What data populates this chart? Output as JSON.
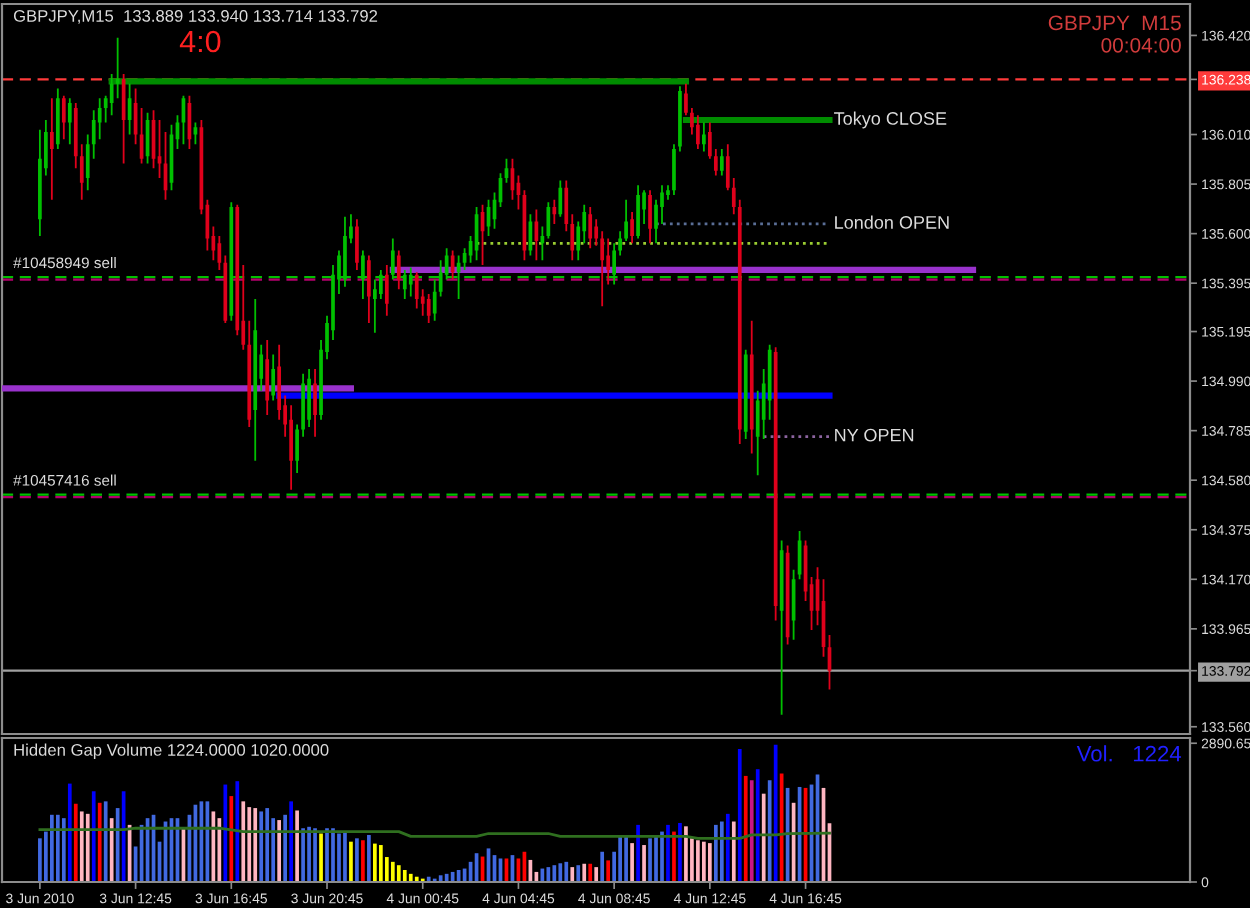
{
  "chart_data": [
    {
      "type": "candlestick",
      "title": "GBPJPY,M15  133.889 133.940 133.714 133.792",
      "x": [
        "2010-06-03T08:45",
        "2010-06-03T09:00",
        "2010-06-03T09:15",
        "2010-06-03T09:30",
        "2010-06-03T09:45",
        "2010-06-03T10:00",
        "2010-06-03T10:15",
        "2010-06-03T10:30",
        "2010-06-03T10:45",
        "2010-06-03T11:00",
        "2010-06-03T11:15",
        "2010-06-03T11:30",
        "2010-06-03T11:45",
        "2010-06-03T12:00",
        "2010-06-03T12:15",
        "2010-06-03T12:30",
        "2010-06-03T12:45",
        "2010-06-03T13:00",
        "2010-06-03T13:15",
        "2010-06-03T13:30",
        "2010-06-03T13:45",
        "2010-06-03T14:00",
        "2010-06-03T14:15",
        "2010-06-03T14:30",
        "2010-06-03T14:45",
        "2010-06-03T15:00",
        "2010-06-03T15:15",
        "2010-06-03T15:30",
        "2010-06-03T15:45",
        "2010-06-03T16:00",
        "2010-06-03T16:15",
        "2010-06-03T16:30",
        "2010-06-03T16:45",
        "2010-06-03T17:00",
        "2010-06-03T17:15",
        "2010-06-03T17:30",
        "2010-06-03T17:45",
        "2010-06-03T18:00",
        "2010-06-03T18:15",
        "2010-06-03T18:30",
        "2010-06-03T18:45",
        "2010-06-03T19:00",
        "2010-06-03T19:15",
        "2010-06-03T19:30",
        "2010-06-03T19:45",
        "2010-06-03T20:00",
        "2010-06-03T20:15",
        "2010-06-03T20:30",
        "2010-06-03T20:45",
        "2010-06-03T21:00",
        "2010-06-03T21:15",
        "2010-06-03T21:30",
        "2010-06-03T21:45",
        "2010-06-03T22:00",
        "2010-06-03T22:15",
        "2010-06-03T22:30",
        "2010-06-03T22:45",
        "2010-06-03T23:00",
        "2010-06-03T23:15",
        "2010-06-03T23:30",
        "2010-06-03T23:45",
        "2010-06-04T00:00",
        "2010-06-04T00:15",
        "2010-06-04T00:30",
        "2010-06-04T00:45",
        "2010-06-04T01:00",
        "2010-06-04T01:15",
        "2010-06-04T01:30",
        "2010-06-04T01:45",
        "2010-06-04T02:00",
        "2010-06-04T02:15",
        "2010-06-04T02:30",
        "2010-06-04T02:45",
        "2010-06-04T03:00",
        "2010-06-04T03:15",
        "2010-06-04T03:30",
        "2010-06-04T03:45",
        "2010-06-04T04:00",
        "2010-06-04T04:15",
        "2010-06-04T04:30",
        "2010-06-04T04:45",
        "2010-06-04T05:00",
        "2010-06-04T05:15",
        "2010-06-04T05:30",
        "2010-06-04T05:45",
        "2010-06-04T06:00",
        "2010-06-04T06:15",
        "2010-06-04T06:30",
        "2010-06-04T06:45",
        "2010-06-04T07:00",
        "2010-06-04T07:15",
        "2010-06-04T07:30",
        "2010-06-04T07:45",
        "2010-06-04T08:00",
        "2010-06-04T08:15",
        "2010-06-04T08:30",
        "2010-06-04T08:45",
        "2010-06-04T09:00",
        "2010-06-04T09:15",
        "2010-06-04T09:30",
        "2010-06-04T09:45",
        "2010-06-04T10:00",
        "2010-06-04T10:15",
        "2010-06-04T10:30",
        "2010-06-04T10:45",
        "2010-06-04T11:00",
        "2010-06-04T11:15",
        "2010-06-04T11:30",
        "2010-06-04T11:45",
        "2010-06-04T12:00",
        "2010-06-04T12:15",
        "2010-06-04T12:30",
        "2010-06-04T12:45",
        "2010-06-04T13:00",
        "2010-06-04T13:15",
        "2010-06-04T13:30",
        "2010-06-04T13:45",
        "2010-06-04T14:00",
        "2010-06-04T14:15",
        "2010-06-04T14:30",
        "2010-06-04T14:45",
        "2010-06-04T15:00",
        "2010-06-04T15:15",
        "2010-06-04T15:30",
        "2010-06-04T15:45",
        "2010-06-04T16:00",
        "2010-06-04T16:15",
        "2010-06-04T16:30",
        "2010-06-04T16:45",
        "2010-06-04T17:00",
        "2010-06-04T17:15",
        "2010-06-04T17:30",
        "2010-06-04T17:45"
      ],
      "ohlc": [
        [
          135.66,
          136.03,
          135.59,
          135.91
        ],
        [
          135.87,
          136.07,
          135.84,
          136.02
        ],
        [
          136.02,
          136.16,
          135.74,
          135.95
        ],
        [
          135.97,
          136.2,
          135.95,
          136.16
        ],
        [
          136.16,
          136.17,
          135.99,
          136.06
        ],
        [
          136.06,
          136.16,
          135.97,
          136.14
        ],
        [
          136.12,
          136.14,
          135.87,
          135.92
        ],
        [
          135.92,
          135.97,
          135.74,
          135.81
        ],
        [
          135.83,
          136.01,
          135.78,
          135.97
        ],
        [
          135.97,
          136.11,
          135.91,
          136.07
        ],
        [
          136.06,
          136.16,
          135.99,
          136.12
        ],
        [
          136.12,
          136.17,
          136.06,
          136.16
        ],
        [
          136.14,
          136.26,
          136.09,
          136.22
        ],
        [
          136.22,
          136.41,
          136.16,
          136.24
        ],
        [
          136.24,
          136.26,
          135.89,
          136.07
        ],
        [
          136.07,
          136.22,
          136.01,
          136.16
        ],
        [
          136.14,
          136.2,
          135.97,
          136.01
        ],
        [
          136.01,
          136.12,
          135.89,
          135.91
        ],
        [
          135.92,
          136.1,
          135.89,
          136.07
        ],
        [
          136.07,
          136.11,
          135.87,
          135.91
        ],
        [
          135.92,
          136.07,
          135.83,
          135.89
        ],
        [
          135.89,
          136.02,
          135.74,
          135.78
        ],
        [
          135.81,
          136.05,
          135.78,
          136.01
        ],
        [
          135.99,
          136.09,
          135.95,
          136.06
        ],
        [
          136.06,
          136.17,
          135.97,
          136.16
        ],
        [
          136.14,
          136.17,
          135.95,
          135.99
        ],
        [
          136.01,
          136.06,
          135.97,
          136.04
        ],
        [
          136.04,
          136.07,
          135.68,
          135.7
        ],
        [
          135.72,
          135.74,
          135.53,
          135.58
        ],
        [
          135.59,
          135.63,
          135.49,
          135.53
        ],
        [
          135.56,
          135.59,
          135.45,
          135.48
        ],
        [
          135.48,
          135.51,
          135.23,
          135.24
        ],
        [
          135.26,
          135.73,
          135.24,
          135.71
        ],
        [
          135.71,
          135.72,
          135.18,
          135.2
        ],
        [
          135.24,
          135.47,
          135.12,
          135.14
        ],
        [
          135.14,
          135.24,
          134.8,
          134.83
        ],
        [
          134.87,
          135.33,
          134.66,
          135.2
        ],
        [
          135.0,
          135.14,
          134.95,
          135.1
        ],
        [
          135.08,
          135.16,
          134.85,
          134.91
        ],
        [
          134.93,
          135.1,
          134.91,
          135.04
        ],
        [
          135.05,
          135.14,
          134.83,
          134.87
        ],
        [
          134.89,
          134.93,
          134.76,
          134.81
        ],
        [
          134.83,
          134.89,
          134.54,
          134.66
        ],
        [
          134.66,
          134.81,
          134.61,
          134.79
        ],
        [
          134.79,
          135.02,
          134.76,
          134.98
        ],
        [
          134.83,
          135.04,
          134.8,
          135.0
        ],
        [
          134.98,
          135.04,
          134.76,
          134.85
        ],
        [
          134.85,
          135.16,
          134.83,
          135.12
        ],
        [
          135.11,
          135.26,
          135.08,
          135.23
        ],
        [
          135.2,
          135.47,
          135.16,
          135.43
        ],
        [
          135.41,
          135.53,
          135.35,
          135.51
        ],
        [
          135.41,
          135.67,
          135.38,
          135.59
        ],
        [
          135.58,
          135.68,
          135.56,
          135.63
        ],
        [
          135.63,
          135.66,
          135.45,
          135.48
        ],
        [
          135.41,
          135.53,
          135.33,
          135.51
        ],
        [
          135.49,
          135.51,
          135.23,
          135.34
        ],
        [
          135.33,
          135.41,
          135.19,
          135.37
        ],
        [
          135.35,
          135.45,
          135.33,
          135.43
        ],
        [
          135.43,
          135.47,
          135.26,
          135.31
        ],
        [
          135.43,
          135.58,
          135.41,
          135.53
        ],
        [
          135.51,
          135.53,
          135.37,
          135.41
        ],
        [
          135.37,
          135.45,
          135.33,
          135.43
        ],
        [
          135.39,
          135.46,
          135.34,
          135.43
        ],
        [
          135.43,
          135.44,
          135.29,
          135.33
        ],
        [
          135.34,
          135.37,
          135.26,
          135.31
        ],
        [
          135.33,
          135.35,
          135.23,
          135.26
        ],
        [
          135.27,
          135.41,
          135.24,
          135.36
        ],
        [
          135.36,
          135.49,
          135.34,
          135.44
        ],
        [
          135.43,
          135.54,
          135.41,
          135.51
        ],
        [
          135.51,
          135.53,
          135.41,
          135.44
        ],
        [
          135.44,
          135.51,
          135.33,
          135.48
        ],
        [
          135.48,
          135.54,
          135.45,
          135.52
        ],
        [
          135.51,
          135.59,
          135.48,
          135.57
        ],
        [
          135.53,
          135.71,
          135.49,
          135.68
        ],
        [
          135.69,
          135.72,
          135.47,
          135.61
        ],
        [
          135.63,
          135.74,
          135.59,
          135.71
        ],
        [
          135.66,
          135.77,
          135.62,
          135.74
        ],
        [
          135.73,
          135.85,
          135.71,
          135.83
        ],
        [
          135.83,
          135.91,
          135.81,
          135.87
        ],
        [
          135.87,
          135.91,
          135.74,
          135.78
        ],
        [
          135.81,
          135.84,
          135.7,
          135.76
        ],
        [
          135.76,
          135.78,
          135.49,
          135.53
        ],
        [
          135.53,
          135.68,
          135.51,
          135.65
        ],
        [
          135.65,
          135.7,
          135.49,
          135.57
        ],
        [
          135.56,
          135.63,
          135.49,
          135.59
        ],
        [
          135.59,
          135.73,
          135.58,
          135.71
        ],
        [
          135.71,
          135.74,
          135.64,
          135.68
        ],
        [
          135.68,
          135.82,
          135.67,
          135.79
        ],
        [
          135.79,
          135.82,
          135.61,
          135.64
        ],
        [
          135.64,
          135.68,
          135.49,
          135.53
        ],
        [
          135.53,
          135.65,
          135.49,
          135.63
        ],
        [
          135.61,
          135.72,
          135.56,
          135.69
        ],
        [
          135.68,
          135.71,
          135.54,
          135.58
        ],
        [
          135.63,
          135.66,
          135.55,
          135.58
        ],
        [
          135.58,
          135.61,
          135.3,
          135.49
        ],
        [
          135.51,
          135.58,
          135.39,
          135.45
        ],
        [
          135.43,
          135.56,
          135.39,
          135.53
        ],
        [
          135.53,
          135.61,
          135.51,
          135.58
        ],
        [
          135.58,
          135.74,
          135.57,
          135.65
        ],
        [
          135.66,
          135.69,
          135.56,
          135.59
        ],
        [
          135.59,
          135.8,
          135.58,
          135.76
        ],
        [
          135.7,
          135.78,
          135.64,
          135.77
        ],
        [
          135.76,
          135.78,
          135.56,
          135.62
        ],
        [
          135.62,
          135.74,
          135.56,
          135.72
        ],
        [
          135.71,
          135.8,
          135.64,
          135.77
        ],
        [
          135.76,
          135.8,
          135.74,
          135.78
        ],
        [
          135.78,
          135.97,
          135.76,
          135.95
        ],
        [
          135.96,
          136.21,
          135.94,
          136.19
        ],
        [
          136.18,
          136.22,
          136.09,
          136.1
        ],
        [
          136.1,
          136.12,
          136.01,
          136.04
        ],
        [
          136.05,
          136.09,
          135.95,
          135.97
        ],
        [
          135.97,
          136.06,
          135.94,
          136.01
        ],
        [
          136.02,
          136.06,
          135.91,
          135.92
        ],
        [
          135.92,
          135.95,
          135.84,
          135.86
        ],
        [
          135.86,
          135.95,
          135.84,
          135.92
        ],
        [
          135.92,
          135.97,
          135.78,
          135.79
        ],
        [
          135.79,
          135.83,
          135.68,
          135.71
        ],
        [
          135.71,
          135.74,
          134.73,
          134.79
        ],
        [
          134.78,
          135.12,
          134.75,
          135.1
        ],
        [
          135.1,
          135.24,
          134.69,
          134.79
        ],
        [
          134.76,
          134.95,
          134.6,
          134.91
        ],
        [
          134.83,
          135.04,
          134.75,
          134.98
        ],
        [
          134.91,
          135.14,
          134.83,
          135.12
        ],
        [
          135.11,
          135.13,
          134.0,
          134.06
        ],
        [
          134.04,
          134.33,
          133.61,
          134.29
        ],
        [
          134.28,
          134.31,
          133.9,
          133.93
        ],
        [
          134.0,
          134.21,
          133.92,
          134.17
        ],
        [
          134.19,
          134.37,
          134.17,
          134.33
        ],
        [
          134.31,
          134.33,
          134.08,
          134.12
        ],
        [
          134.15,
          134.18,
          133.96,
          134.04
        ],
        [
          134.17,
          134.22,
          133.98,
          134.04
        ],
        [
          134.08,
          134.17,
          133.85,
          133.89
        ],
        [
          133.889,
          133.94,
          133.714,
          133.792
        ]
      ],
      "colors": [
        "#00c000",
        "#00c000",
        "#e0001b",
        "#00c000",
        "#e0001b",
        "#00c000",
        "#e0001b",
        "#e0001b",
        "#00c000",
        "#00c000",
        "#00c000",
        "#00c000",
        "#00c000",
        "#00c000",
        "#e0001b",
        "#00c000",
        "#e0001b",
        "#e0001b",
        "#00c000",
        "#e0001b",
        "#e0001b",
        "#e0001b",
        "#00c000",
        "#00c000",
        "#00c000",
        "#e0001b",
        "#00c000",
        "#e0001b",
        "#e0001b",
        "#e0001b",
        "#e0001b",
        "#e0001b",
        "#00c000",
        "#e0001b",
        "#e0001b",
        "#e0001b",
        "#00c000",
        "#00c000",
        "#e0001b",
        "#00c000",
        "#e0001b",
        "#e0001b",
        "#e0001b",
        "#00c000",
        "#00c000",
        "#00c000",
        "#e0001b",
        "#00c000",
        "#00c000",
        "#00c000",
        "#00c000",
        "#00c000",
        "#00c000",
        "#e0001b",
        "#00c000",
        "#e0001b",
        "#00c000",
        "#00c000",
        "#e0001b",
        "#00c000",
        "#e0001b",
        "#00c000",
        "#00c000",
        "#e0001b",
        "#e0001b",
        "#e0001b",
        "#00c000",
        "#00c000",
        "#00c000",
        "#e0001b",
        "#00c000",
        "#00c000",
        "#00c000",
        "#00c000",
        "#e0001b",
        "#00c000",
        "#00c000",
        "#00c000",
        "#00c000",
        "#e0001b",
        "#e0001b",
        "#e0001b",
        "#00c000",
        "#e0001b",
        "#00c000",
        "#00c000",
        "#e0001b",
        "#00c000",
        "#e0001b",
        "#e0001b",
        "#00c000",
        "#00c000",
        "#e0001b",
        "#e0001b",
        "#e0001b",
        "#e0001b",
        "#00c000",
        "#00c000",
        "#00c000",
        "#e0001b",
        "#00c000",
        "#00c000",
        "#e0001b",
        "#00c000",
        "#00c000",
        "#00c000",
        "#00c000",
        "#00c000",
        "#e0001b",
        "#e0001b",
        "#e0001b",
        "#00c000",
        "#e0001b",
        "#e0001b",
        "#00c000",
        "#e0001b",
        "#e0001b",
        "#e0001b",
        "#00c000",
        "#e0001b",
        "#00c000",
        "#00c000",
        "#00c000",
        "#e0001b",
        "#00c000",
        "#e0001b",
        "#00c000",
        "#00c000",
        "#e0001b",
        "#e0001b",
        "#e0001b",
        "#e0001b",
        "#e0001b"
      ],
      "series": [
        {
          "type": "line",
          "x": [
            "2010-06-03T11:45",
            "2010-06-04T11:45"
          ],
          "values": [
            136.23,
            136.23
          ],
          "color": "#008c00"
        },
        {
          "type": "line",
          "name": "Tokyo CLOSE",
          "x": [
            "2010-06-04T11:45",
            "2010-06-04T17:45"
          ],
          "values": [
            136.07,
            136.07
          ],
          "color": "#008c00"
        },
        {
          "type": "line",
          "name": "London OPEN",
          "x": [
            "2010-06-04T10:30",
            "2010-06-04T17:45"
          ],
          "values": [
            135.64,
            135.64
          ],
          "color": "#5a6e96",
          "line_style": "dotted"
        },
        {
          "type": "line",
          "x": [
            "2010-06-04T03:00",
            "2010-06-04T17:45"
          ],
          "values": [
            135.56,
            135.56
          ],
          "color": "#9acd32",
          "line_style": "dotted"
        },
        {
          "type": "line",
          "x": [
            "2010-06-03T23:30",
            "2010-06-04T23:45"
          ],
          "values": [
            135.45,
            135.45
          ],
          "color": "#9932cc"
        },
        {
          "type": "line",
          "x": [
            "2010-06-03T07:10",
            "2010-06-03T21:45"
          ],
          "values": [
            134.96,
            134.96
          ],
          "color": "#9932cc"
        },
        {
          "type": "line",
          "x": [
            "2010-06-03T18:45",
            "2010-06-04T17:45"
          ],
          "values": [
            134.93,
            134.93
          ],
          "color": "#0000ff"
        },
        {
          "type": "line",
          "name": "NY OPEN",
          "x": [
            "2010-06-04T15:00",
            "2010-06-04T17:45"
          ],
          "values": [
            134.76,
            134.76
          ],
          "color": "#8c64a0",
          "line_style": "dotted"
        }
      ],
      "ref_lines": [
        {
          "axis": "y",
          "value": 136.238,
          "color": "#ff3b3b",
          "line_style": "dashed"
        },
        {
          "axis": "y",
          "value": 135.42,
          "color": "#00c000",
          "line_style": "dashed"
        },
        {
          "axis": "y",
          "value": 135.41,
          "label": "#10458949 sell",
          "color": "#b4006e",
          "line_style": "dashed"
        },
        {
          "axis": "y",
          "value": 134.52,
          "color": "#00c000",
          "line_style": "dashed"
        },
        {
          "axis": "y",
          "value": 134.51,
          "label": "#10457416 sell",
          "color": "#b4006e",
          "line_style": "dashed"
        },
        {
          "axis": "y",
          "value": 133.792,
          "color": "#a0a0a0",
          "line_style": "solid"
        }
      ],
      "annotations": [
        "4:0",
        "GBPJPY  M15\n00:04:00"
      ],
      "xlim": [
        "2010-06-03T07:10",
        "2010-06-05T08:49"
      ],
      "ylim": [
        133.53,
        136.55
      ],
      "yticks": [
        {
          "value": 136.42,
          "label": "136.420"
        },
        136.238,
        {
          "value": 136.01,
          "label": "136.010"
        },
        135.805,
        {
          "value": 135.6,
          "label": "135.600"
        },
        135.395,
        135.195,
        {
          "value": 134.99,
          "label": "134.990"
        },
        134.785,
        {
          "value": 134.58,
          "label": "134.580"
        },
        134.375,
        {
          "value": 134.17,
          "label": "134.170"
        },
        133.965,
        133.792,
        {
          "value": 133.56,
          "label": "133.560"
        }
      ],
      "tick_labels": "y"
    },
    {
      "type": "bar",
      "title": "Hidden Gap Volume 1224.0000 1020.0000",
      "x": [
        "2010-06-03T08:45",
        "2010-06-03T09:00",
        "2010-06-03T09:15",
        "2010-06-03T09:30",
        "2010-06-03T09:45",
        "2010-06-03T10:00",
        "2010-06-03T10:15",
        "2010-06-03T10:30",
        "2010-06-03T10:45",
        "2010-06-03T11:00",
        "2010-06-03T11:15",
        "2010-06-03T11:30",
        "2010-06-03T11:45",
        "2010-06-03T12:00",
        "2010-06-03T12:15",
        "2010-06-03T12:30",
        "2010-06-03T12:45",
        "2010-06-03T13:00",
        "2010-06-03T13:15",
        "2010-06-03T13:30",
        "2010-06-03T13:45",
        "2010-06-03T14:00",
        "2010-06-03T14:15",
        "2010-06-03T14:30",
        "2010-06-03T14:45",
        "2010-06-03T15:00",
        "2010-06-03T15:15",
        "2010-06-03T15:30",
        "2010-06-03T15:45",
        "2010-06-03T16:00",
        "2010-06-03T16:15",
        "2010-06-03T16:30",
        "2010-06-03T16:45",
        "2010-06-03T17:00",
        "2010-06-03T17:15",
        "2010-06-03T17:30",
        "2010-06-03T17:45",
        "2010-06-03T18:00",
        "2010-06-03T18:15",
        "2010-06-03T18:30",
        "2010-06-03T18:45",
        "2010-06-03T19:00",
        "2010-06-03T19:15",
        "2010-06-03T19:30",
        "2010-06-03T19:45",
        "2010-06-03T20:00",
        "2010-06-03T20:15",
        "2010-06-03T20:30",
        "2010-06-03T20:45",
        "2010-06-03T21:00",
        "2010-06-03T21:15",
        "2010-06-03T21:30",
        "2010-06-03T21:45",
        "2010-06-03T22:00",
        "2010-06-03T22:15",
        "2010-06-03T22:30",
        "2010-06-03T22:45",
        "2010-06-03T23:00",
        "2010-06-03T23:15",
        "2010-06-03T23:30",
        "2010-06-03T23:45",
        "2010-06-04T00:00",
        "2010-06-04T00:15",
        "2010-06-04T00:30",
        "2010-06-04T00:45",
        "2010-06-04T01:00",
        "2010-06-04T01:15",
        "2010-06-04T01:30",
        "2010-06-04T01:45",
        "2010-06-04T02:00",
        "2010-06-04T02:15",
        "2010-06-04T02:30",
        "2010-06-04T02:45",
        "2010-06-04T03:00",
        "2010-06-04T03:15",
        "2010-06-04T03:30",
        "2010-06-04T03:45",
        "2010-06-04T04:00",
        "2010-06-04T04:15",
        "2010-06-04T04:30",
        "2010-06-04T04:45",
        "2010-06-04T05:00",
        "2010-06-04T05:15",
        "2010-06-04T05:30",
        "2010-06-04T05:45",
        "2010-06-04T06:00",
        "2010-06-04T06:15",
        "2010-06-04T06:30",
        "2010-06-04T06:45",
        "2010-06-04T07:00",
        "2010-06-04T07:15",
        "2010-06-04T07:30",
        "2010-06-04T07:45",
        "2010-06-04T08:00",
        "2010-06-04T08:15",
        "2010-06-04T08:30",
        "2010-06-04T08:45",
        "2010-06-04T09:00",
        "2010-06-04T09:15",
        "2010-06-04T09:30",
        "2010-06-04T09:45",
        "2010-06-04T10:00",
        "2010-06-04T10:15",
        "2010-06-04T10:30",
        "2010-06-04T10:45",
        "2010-06-04T11:00",
        "2010-06-04T11:15",
        "2010-06-04T11:30",
        "2010-06-04T11:45",
        "2010-06-04T12:00",
        "2010-06-04T12:15",
        "2010-06-04T12:30",
        "2010-06-04T12:45",
        "2010-06-04T13:00",
        "2010-06-04T13:15",
        "2010-06-04T13:30",
        "2010-06-04T13:45",
        "2010-06-04T14:00",
        "2010-06-04T14:15",
        "2010-06-04T14:30",
        "2010-06-04T14:45",
        "2010-06-04T15:00",
        "2010-06-04T15:15",
        "2010-06-04T15:30",
        "2010-06-04T15:45",
        "2010-06-04T16:00",
        "2010-06-04T16:15",
        "2010-06-04T16:30",
        "2010-06-04T16:45",
        "2010-06-04T17:00",
        "2010-06-04T17:15",
        "2010-06-04T17:30",
        "2010-06-04T17:45"
      ],
      "series": [
        {
          "values": [
            910,
            1050,
            1400,
            1400,
            1330,
            2050,
            1630,
            1470,
            1420,
            1890,
            1650,
            1680,
            1330,
            1540,
            1890,
            1190,
            740,
            1190,
            1330,
            1400,
            840,
            1260,
            1330,
            1330,
            1120,
            1400,
            1610,
            1680,
            1680,
            1470,
            1330,
            2030,
            1790,
            2100,
            1680,
            1560,
            1540,
            1470,
            1540,
            1330,
            1290,
            1400,
            1680,
            1490,
            1120,
            1150,
            1120,
            1010,
            1120,
            1120,
            1010,
            1050,
            840,
            910,
            870,
            980,
            800,
            770,
            520,
            420,
            350,
            250,
            170,
            110,
            70,
            110,
            70,
            140,
            170,
            210,
            250,
            280,
            420,
            600,
            530,
            700,
            560,
            490,
            490,
            560,
            490,
            630,
            460,
            210,
            280,
            310,
            350,
            390,
            420,
            310,
            350,
            380,
            380,
            310,
            630,
            450,
            630,
            950,
            950,
            810,
            1190,
            770,
            910,
            940,
            1050,
            1190,
            1050,
            1230,
            1160,
            910,
            870,
            840,
            810,
            1190,
            1260,
            1420,
            1260,
            2770,
            2210,
            2120,
            2350,
            1840,
            2120,
            2860,
            2260,
            1960,
            1650,
            1980,
            1960,
            2030,
            2240,
            1960,
            1224
          ],
          "colors": [
            "#4169e1",
            "#4169e1",
            "#4169e1",
            "#4169e1",
            "#4169e1",
            "#0000ff",
            "#ff0000",
            "#ffb6c1",
            "#ffb6c1",
            "#0000ff",
            "#ff0000",
            "#4169e1",
            "#ffb6c1",
            "#4169e1",
            "#0000ff",
            "#ffb6c1",
            "#4169e1",
            "#4169e1",
            "#4169e1",
            "#4169e1",
            "#4169e1",
            "#4169e1",
            "#4169e1",
            "#4169e1",
            "#ffb6c1",
            "#4169e1",
            "#4169e1",
            "#4169e1",
            "#4169e1",
            "#ffb6c1",
            "#ffb6c1",
            "#0000ff",
            "#ff0000",
            "#0000ff",
            "#ffb6c1",
            "#ffb6c1",
            "#ffb6c1",
            "#4169e1",
            "#4169e1",
            "#4169e1",
            "#ffb6c1",
            "#4169e1",
            "#0000ff",
            "#ffb6c1",
            "#4169e1",
            "#4169e1",
            "#4169e1",
            "#ffff00",
            "#4169e1",
            "#4169e1",
            "#4169e1",
            "#4169e1",
            "#ffff00",
            "#4169e1",
            "#ff0000",
            "#4169e1",
            "#ffff00",
            "#ffff00",
            "#ffff00",
            "#ffff00",
            "#ffff00",
            "#ffff00",
            "#ffff00",
            "#ffff00",
            "#ffff00",
            "#4169e1",
            "#4169e1",
            "#4169e1",
            "#4169e1",
            "#4169e1",
            "#4169e1",
            "#4169e1",
            "#4169e1",
            "#4169e1",
            "#ff0000",
            "#4169e1",
            "#4169e1",
            "#4169e1",
            "#ff0000",
            "#4169e1",
            "#ff0000",
            "#ff0000",
            "#ffb6c1",
            "#ffb6c1",
            "#4169e1",
            "#4169e1",
            "#4169e1",
            "#4169e1",
            "#4169e1",
            "#ffb6c1",
            "#4169e1",
            "#ffb6c1",
            "#ff0000",
            "#ffb6c1",
            "#4169e1",
            "#ff0000",
            "#4169e1",
            "#4169e1",
            "#4169e1",
            "#ffb6c1",
            "#0000ff",
            "#ffb6c1",
            "#4169e1",
            "#4169e1",
            "#4169e1",
            "#0000ff",
            "#ff0000",
            "#0000ff",
            "#ffb6c1",
            "#ffb6c1",
            "#ffb6c1",
            "#ffb6c1",
            "#ffb6c1",
            "#4169e1",
            "#4169e1",
            "#0000ff",
            "#ffb6c1",
            "#0000ff",
            "#ff0000",
            "#c71585",
            "#0000ff",
            "#ffb6c1",
            "#4169e1",
            "#0000ff",
            "#ff0000",
            "#4169e1",
            "#ffb6c1",
            "#4169e1",
            "#ff0000",
            "#4169e1",
            "#4169e1",
            "#ffb6c1",
            "#ffb6c1"
          ]
        },
        {
          "type": "line",
          "x": [
            "2010-06-03T08:45",
            "2010-06-03T12:15",
            "2010-06-03T12:45",
            "2010-06-03T16:15",
            "2010-06-03T17:15",
            "2010-06-03T23:45",
            "2010-06-04T00:15",
            "2010-06-04T03:00",
            "2010-06-04T03:30",
            "2010-06-04T06:00",
            "2010-06-04T06:30",
            "2010-06-04T11:45",
            "2010-06-04T12:15",
            "2010-06-04T14:00",
            "2010-06-04T14:30",
            "2010-06-04T15:30",
            "2010-06-04T16:00",
            "2010-06-04T17:45"
          ],
          "values": [
            1090,
            1090,
            1120,
            1120,
            1050,
            1050,
            950,
            950,
            1010,
            1010,
            950,
            950,
            910,
            910,
            980,
            980,
            1010,
            1020
          ],
          "color": "#2f6f1f"
        }
      ],
      "annotations": [
        "Vol.   1224"
      ],
      "xlim": [
        "2010-06-03T07:10",
        "2010-06-05T08:49"
      ],
      "ylim": [
        0,
        3000
      ],
      "yticks": [
        2890.65,
        0
      ],
      "xticks": [
        {
          "value": "2010-06-03T08:45",
          "label": "3 Jun 2010"
        },
        {
          "value": "2010-06-03T12:45",
          "label": "3 Jun 12:45"
        },
        {
          "value": "2010-06-03T16:45",
          "label": "3 Jun 16:45"
        },
        {
          "value": "2010-06-03T20:45",
          "label": "3 Jun 20:45"
        },
        {
          "value": "2010-06-04T00:45",
          "label": "4 Jun 00:45"
        },
        {
          "value": "2010-06-04T04:45",
          "label": "4 Jun 04:45"
        },
        {
          "value": "2010-06-04T08:45",
          "label": "4 Jun 08:45"
        },
        {
          "value": "2010-06-04T12:45",
          "label": "4 Jun 12:45"
        },
        {
          "value": "2010-06-04T16:45",
          "label": "4 Jun 16:45"
        }
      ]
    }
  ]
}
